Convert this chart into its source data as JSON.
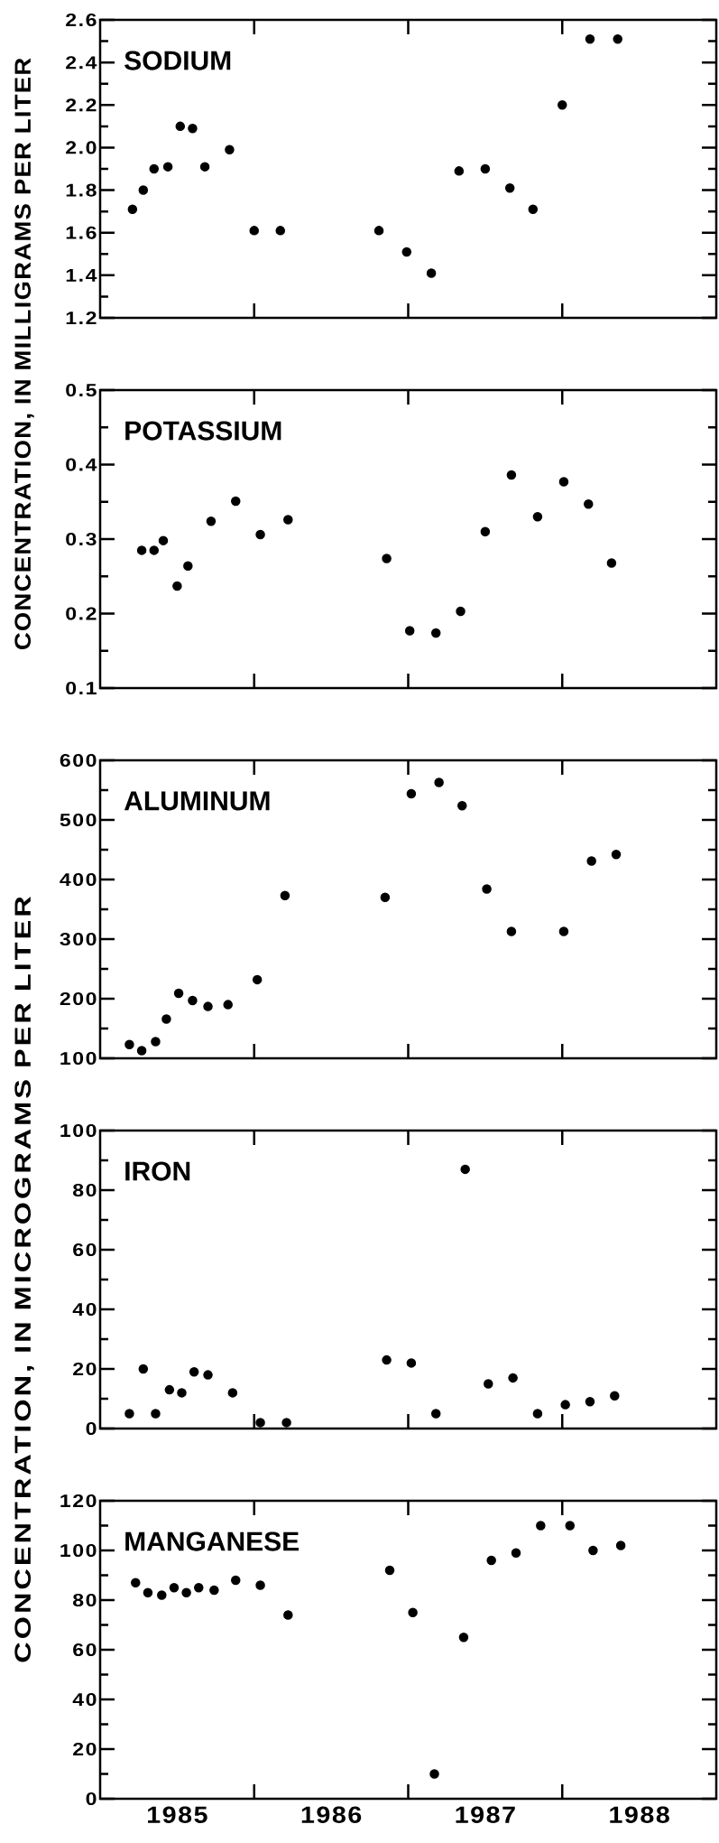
{
  "chart_data": [
    {
      "type": "scatter",
      "title": "SODIUM",
      "ylabel": "CONCENTRATION, IN MILLIGRAMS PER LITER",
      "color": "#000000",
      "marker": "circle",
      "tick_labels": "y",
      "x": [
        1985.21,
        1985.28,
        1985.35,
        1985.44,
        1985.52,
        1985.6,
        1985.68,
        1985.84,
        1986.0,
        1986.17,
        1986.81,
        1986.99,
        1987.15,
        1987.33,
        1987.5,
        1987.66,
        1987.81,
        1988.0,
        1988.18,
        1988.36
      ],
      "values": [
        1.71,
        1.8,
        1.9,
        1.91,
        2.1,
        2.09,
        1.91,
        1.99,
        1.61,
        1.61,
        1.61,
        1.51,
        1.41,
        1.89,
        1.9,
        1.81,
        1.71,
        2.2,
        2.51,
        2.51
      ],
      "xlim": [
        1985,
        1989
      ],
      "xticks": [
        {
          "value": 1986,
          "label": null
        },
        {
          "value": 1987,
          "label": null
        },
        {
          "value": 1988,
          "label": null
        }
      ],
      "ylim": [
        1.2,
        2.6
      ],
      "yticks": [
        1.2,
        {
          "value": 1.3,
          "label": null
        },
        1.4,
        {
          "value": 1.5,
          "label": null
        },
        1.6,
        {
          "value": 1.7,
          "label": null
        },
        1.8,
        {
          "value": 1.9,
          "label": null
        },
        {
          "value": 2,
          "label": "2.0"
        },
        {
          "value": 2.1,
          "label": null
        },
        2.2,
        {
          "value": 2.3,
          "label": null
        },
        2.4,
        {
          "value": 2.5,
          "label": null
        },
        2.6
      ]
    },
    {
      "type": "scatter",
      "title": "POTASSIUM",
      "color": "#000000",
      "marker": "circle",
      "tick_labels": "y",
      "x": [
        1985.27,
        1985.35,
        1985.41,
        1985.5,
        1985.57,
        1985.72,
        1985.88,
        1986.04,
        1986.22,
        1986.86,
        1987.01,
        1987.18,
        1987.34,
        1987.5,
        1987.67,
        1987.84,
        1988.01,
        1988.17,
        1988.32
      ],
      "values": [
        0.285,
        0.285,
        0.298,
        0.237,
        0.264,
        0.324,
        0.351,
        0.306,
        0.326,
        0.274,
        0.177,
        0.174,
        0.203,
        0.31,
        0.386,
        0.33,
        0.377,
        0.347,
        0.268
      ],
      "xlim": [
        1985,
        1989
      ],
      "xticks": [
        {
          "value": 1986,
          "label": null
        },
        {
          "value": 1987,
          "label": null
        },
        {
          "value": 1988,
          "label": null
        }
      ],
      "ylim": [
        0.1,
        0.5
      ],
      "yticks": [
        0.1,
        {
          "value": 0.15,
          "label": null
        },
        0.2,
        {
          "value": 0.25,
          "label": null
        },
        0.3,
        {
          "value": 0.35,
          "label": null
        },
        0.4,
        {
          "value": 0.45,
          "label": null
        },
        0.5
      ]
    },
    {
      "type": "scatter",
      "title": "ALUMINUM",
      "ylabel": "CONCENTRATION, IN MICROGRAMS PER LITER",
      "color": "#000000",
      "marker": "circle",
      "tick_labels": "y",
      "x": [
        1985.19,
        1985.27,
        1985.36,
        1985.43,
        1985.51,
        1985.6,
        1985.7,
        1985.83,
        1986.02,
        1986.2,
        1986.85,
        1987.02,
        1987.2,
        1987.35,
        1987.51,
        1987.67,
        1988.01,
        1988.19,
        1988.35
      ],
      "values": [
        123,
        113,
        128,
        166,
        209,
        197,
        187,
        190,
        232,
        373,
        370,
        544,
        563,
        524,
        384,
        313,
        313,
        431,
        442
      ],
      "xlim": [
        1985,
        1989
      ],
      "xticks": [
        {
          "value": 1986,
          "label": null
        },
        {
          "value": 1987,
          "label": null
        },
        {
          "value": 1988,
          "label": null
        }
      ],
      "ylim": [
        100,
        600
      ],
      "yticks": [
        100,
        {
          "value": 150,
          "label": null
        },
        200,
        {
          "value": 250,
          "label": null
        },
        300,
        {
          "value": 350,
          "label": null
        },
        400,
        {
          "value": 450,
          "label": null
        },
        500,
        {
          "value": 550,
          "label": null
        },
        600
      ]
    },
    {
      "type": "scatter",
      "title": "IRON",
      "color": "#000000",
      "marker": "circle",
      "tick_labels": "y",
      "x": [
        1985.19,
        1985.28,
        1985.36,
        1985.45,
        1985.53,
        1985.61,
        1985.7,
        1985.86,
        1986.04,
        1986.21,
        1986.86,
        1987.02,
        1987.18,
        1987.37,
        1987.52,
        1987.68,
        1987.84,
        1988.02,
        1988.18,
        1988.34
      ],
      "values": [
        5,
        20,
        5,
        13,
        12,
        19,
        18,
        12,
        2,
        2,
        23,
        22,
        5,
        87,
        15,
        17,
        5,
        8,
        9,
        11
      ],
      "xlim": [
        1985,
        1989
      ],
      "xticks": [
        {
          "value": 1986,
          "label": null
        },
        {
          "value": 1987,
          "label": null
        },
        {
          "value": 1988,
          "label": null
        }
      ],
      "ylim": [
        0,
        100
      ],
      "yticks": [
        0,
        {
          "value": 10,
          "label": null
        },
        20,
        {
          "value": 30,
          "label": null
        },
        40,
        {
          "value": 50,
          "label": null
        },
        60,
        {
          "value": 70,
          "label": null
        },
        80,
        {
          "value": 90,
          "label": null
        },
        100
      ]
    },
    {
      "type": "scatter",
      "title": "MANGANESE",
      "color": "#000000",
      "marker": "circle",
      "x": [
        1985.23,
        1985.31,
        1985.4,
        1985.48,
        1985.56,
        1985.64,
        1985.74,
        1985.88,
        1986.04,
        1986.22,
        1986.88,
        1987.03,
        1987.17,
        1987.36,
        1987.54,
        1987.7,
        1987.86,
        1988.05,
        1988.2,
        1988.38
      ],
      "values": [
        87,
        83,
        82,
        85,
        83,
        85,
        84,
        88,
        86,
        74,
        92,
        75,
        10,
        65,
        96,
        99,
        110,
        110,
        100,
        102
      ],
      "xlim": [
        1985,
        1989
      ],
      "xticks": [
        {
          "value": 1986,
          "label": null
        },
        {
          "value": 1987,
          "label": null
        },
        {
          "value": 1988,
          "label": null
        },
        {
          "value": 1985.5,
          "label": "1985"
        },
        {
          "value": 1986.5,
          "label": "1986"
        },
        {
          "value": 1987.5,
          "label": "1987"
        },
        {
          "value": 1988.5,
          "label": "1988"
        }
      ],
      "ylim": [
        0,
        120
      ],
      "yticks": [
        0,
        {
          "value": 10,
          "label": null
        },
        20,
        {
          "value": 30,
          "label": null
        },
        40,
        {
          "value": 50,
          "label": null
        },
        60,
        {
          "value": 70,
          "label": null
        },
        80,
        {
          "value": 90,
          "label": null
        },
        100,
        {
          "value": 110,
          "label": null
        },
        120
      ]
    }
  ]
}
